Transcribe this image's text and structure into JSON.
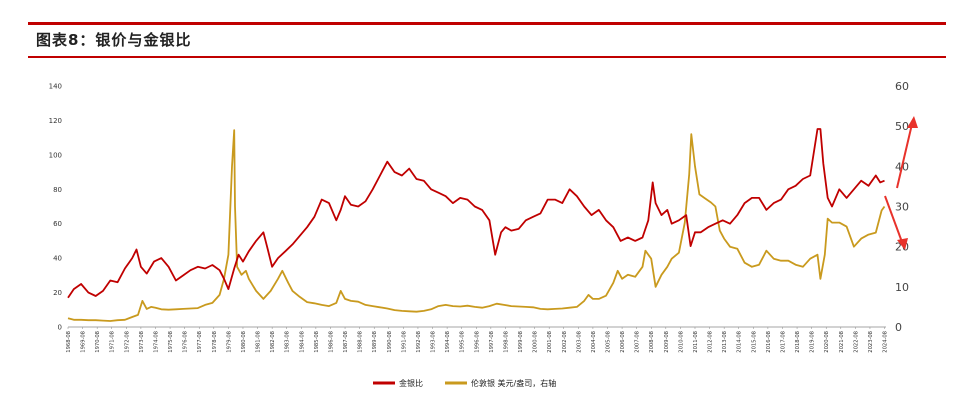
{
  "header": {
    "title": "图表8：银价与金银比"
  },
  "chart_data": {
    "type": "line",
    "title": "图表8：银价与金银比",
    "xlabel": "",
    "ylabel": "",
    "x_ticks": [
      "1968-08",
      "1969-08",
      "1970-08",
      "1971-08",
      "1972-08",
      "1973-08",
      "1974-08",
      "1975-08",
      "1976-08",
      "1977-08",
      "1978-08",
      "1979-08",
      "1980-08",
      "1981-08",
      "1982-08",
      "1983-08",
      "1984-08",
      "1985-08",
      "1986-08",
      "1987-08",
      "1988-08",
      "1989-08",
      "1990-08",
      "1991-08",
      "1992-08",
      "1993-08",
      "1994-08",
      "1995-08",
      "1996-08",
      "1997-08",
      "1998-08",
      "1999-08",
      "2000-08",
      "2001-08",
      "2002-08",
      "2003-08",
      "2004-08",
      "2005-08",
      "2006-08",
      "2007-08",
      "2008-08",
      "2009-08",
      "2010-08",
      "2011-08",
      "2012-08",
      "2013-08",
      "2014-08",
      "2015-08",
      "2016-08",
      "2017-08",
      "2018-08",
      "2019-08",
      "2020-08",
      "2021-08",
      "2022-08",
      "2023-08",
      "2024-08"
    ],
    "left_axis": {
      "ylim": [
        0,
        140
      ],
      "ticks": [
        "0",
        "20",
        "40",
        "60",
        "80",
        "100",
        "120",
        "140"
      ]
    },
    "right_axis": {
      "ylim": [
        0,
        60
      ],
      "ticks": [
        "0",
        "10",
        "20",
        "30",
        "40",
        "50",
        "60"
      ]
    },
    "legend_position": "bottom-center",
    "series": [
      {
        "name": "金银比",
        "axis": "left",
        "color": "#c00000",
        "x": [
          1968.6,
          1969.0,
          1969.5,
          1970.0,
          1970.5,
          1971.0,
          1971.5,
          1972.0,
          1972.5,
          1973.0,
          1973.3,
          1973.6,
          1974.0,
          1974.5,
          1975.0,
          1975.5,
          1976.0,
          1976.5,
          1977.0,
          1977.5,
          1978.0,
          1978.5,
          1979.0,
          1979.3,
          1979.6,
          1980.0,
          1980.3,
          1980.6,
          1981.0,
          1981.5,
          1982.0,
          1982.3,
          1982.6,
          1983.0,
          1983.5,
          1984.0,
          1984.5,
          1985.0,
          1985.5,
          1986.0,
          1986.5,
          1987.0,
          1987.3,
          1987.6,
          1988.0,
          1988.5,
          1989.0,
          1989.5,
          1990.0,
          1990.5,
          1991.0,
          1991.5,
          1992.0,
          1992.5,
          1993.0,
          1993.5,
          1994.0,
          1994.5,
          1995.0,
          1995.5,
          1996.0,
          1996.5,
          1997.0,
          1997.5,
          1997.9,
          1998.3,
          1998.6,
          1999.0,
          1999.5,
          2000.0,
          2000.5,
          2001.0,
          2001.5,
          2002.0,
          2002.5,
          2003.0,
          2003.5,
          2004.0,
          2004.5,
          2005.0,
          2005.5,
          2006.0,
          2006.5,
          2007.0,
          2007.5,
          2008.0,
          2008.4,
          2008.7,
          2008.9,
          2009.3,
          2009.7,
          2010.0,
          2010.5,
          2011.0,
          2011.3,
          2011.6,
          2012.0,
          2012.5,
          2013.0,
          2013.5,
          2014.0,
          2014.5,
          2015.0,
          2015.5,
          2016.0,
          2016.5,
          2017.0,
          2017.5,
          2018.0,
          2018.5,
          2019.0,
          2019.5,
          2020.0,
          2020.2,
          2020.4,
          2020.7,
          2021.0,
          2021.5,
          2022.0,
          2022.5,
          2023.0,
          2023.5,
          2024.0,
          2024.3,
          2024.6
        ],
        "values": [
          17,
          22,
          25,
          20,
          18,
          21,
          27,
          26,
          34,
          40,
          45,
          35,
          31,
          38,
          40,
          35,
          27,
          30,
          33,
          35,
          34,
          36,
          33,
          28,
          22,
          34,
          42,
          38,
          44,
          50,
          55,
          45,
          35,
          40,
          44,
          48,
          53,
          58,
          64,
          74,
          72,
          62,
          68,
          76,
          71,
          70,
          73,
          80,
          88,
          96,
          90,
          88,
          92,
          86,
          85,
          80,
          78,
          76,
          72,
          75,
          74,
          70,
          68,
          62,
          42,
          55,
          58,
          56,
          57,
          62,
          64,
          66,
          74,
          74,
          72,
          80,
          76,
          70,
          65,
          68,
          62,
          58,
          50,
          52,
          50,
          52,
          62,
          84,
          72,
          65,
          68,
          60,
          62,
          65,
          47,
          55,
          55,
          58,
          60,
          62,
          60,
          65,
          72,
          75,
          75,
          68,
          72,
          74,
          80,
          82,
          86,
          88,
          115,
          115,
          95,
          75,
          70,
          80,
          75,
          80,
          85,
          82,
          88,
          84,
          85
        ]
      },
      {
        "name": "伦敦银 美元/盎司，右轴",
        "axis": "right",
        "color": "#c99a1e",
        "x": [
          1968.6,
          1969.0,
          1969.5,
          1970.0,
          1970.5,
          1971.0,
          1971.5,
          1972.0,
          1972.5,
          1973.0,
          1973.4,
          1973.7,
          1974.0,
          1974.3,
          1974.6,
          1975.0,
          1975.5,
          1976.0,
          1976.5,
          1977.0,
          1977.5,
          1978.0,
          1978.5,
          1979.0,
          1979.3,
          1979.6,
          1979.85,
          1980.0,
          1980.05,
          1980.2,
          1980.5,
          1980.8,
          1981.0,
          1981.5,
          1982.0,
          1982.5,
          1983.0,
          1983.3,
          1983.7,
          1984.0,
          1984.5,
          1985.0,
          1985.5,
          1986.0,
          1986.5,
          1987.0,
          1987.3,
          1987.6,
          1988.0,
          1988.5,
          1989.0,
          1989.5,
          1990.0,
          1990.5,
          1991.0,
          1991.5,
          1992.0,
          1992.5,
          1993.0,
          1993.5,
          1994.0,
          1994.5,
          1995.0,
          1995.5,
          1996.0,
          1996.5,
          1997.0,
          1997.5,
          1998.0,
          1998.5,
          1999.0,
          1999.5,
          2000.0,
          2000.5,
          2001.0,
          2001.5,
          2002.0,
          2002.5,
          2003.0,
          2003.5,
          2004.0,
          2004.3,
          2004.6,
          2005.0,
          2005.5,
          2006.0,
          2006.3,
          2006.6,
          2007.0,
          2007.5,
          2008.0,
          2008.2,
          2008.6,
          2008.9,
          2009.3,
          2009.7,
          2010.0,
          2010.5,
          2010.9,
          2011.2,
          2011.35,
          2011.6,
          2011.9,
          2012.3,
          2012.7,
          2013.0,
          2013.3,
          2013.6,
          2014.0,
          2014.5,
          2015.0,
          2015.5,
          2016.0,
          2016.5,
          2017.0,
          2017.5,
          2018.0,
          2018.5,
          2019.0,
          2019.5,
          2020.0,
          2020.2,
          2020.5,
          2020.7,
          2021.0,
          2021.5,
          2022.0,
          2022.5,
          2023.0,
          2023.5,
          2024.0,
          2024.4,
          2024.6
        ],
        "values": [
          2.2,
          1.8,
          1.8,
          1.7,
          1.7,
          1.6,
          1.5,
          1.7,
          1.8,
          2.5,
          3.0,
          6.5,
          4.5,
          5.0,
          4.8,
          4.4,
          4.3,
          4.4,
          4.5,
          4.6,
          4.7,
          5.5,
          6.0,
          8.0,
          12.0,
          18.0,
          40.0,
          49.0,
          30.0,
          15.0,
          13.0,
          14.0,
          12.0,
          9.0,
          7.0,
          9.0,
          12.0,
          14.0,
          11.0,
          9.0,
          7.5,
          6.2,
          5.9,
          5.5,
          5.2,
          6.0,
          9.0,
          7.0,
          6.5,
          6.3,
          5.5,
          5.2,
          4.9,
          4.6,
          4.2,
          4.0,
          3.9,
          3.8,
          4.0,
          4.4,
          5.2,
          5.5,
          5.2,
          5.1,
          5.3,
          5.0,
          4.8,
          5.2,
          5.8,
          5.5,
          5.2,
          5.1,
          5.0,
          4.9,
          4.5,
          4.4,
          4.5,
          4.6,
          4.8,
          5.0,
          6.5,
          8.0,
          7.0,
          7.0,
          7.8,
          11.0,
          14.0,
          12.0,
          13.0,
          12.5,
          15.0,
          19.0,
          17.0,
          10.0,
          13.0,
          15.0,
          17.0,
          18.5,
          26.0,
          38.0,
          48.0,
          40.0,
          33.0,
          32.0,
          31.0,
          30.0,
          24.0,
          22.0,
          20.0,
          19.5,
          16.0,
          15.0,
          15.5,
          19.0,
          17.0,
          16.5,
          16.5,
          15.5,
          15.0,
          17.0,
          18.0,
          12.0,
          18.0,
          27.0,
          26.0,
          26.0,
          25.0,
          20.0,
          22.0,
          23.0,
          23.5,
          29.0,
          30.0
        ]
      }
    ]
  },
  "annotations": {
    "arrow_color": "#e8322b"
  }
}
